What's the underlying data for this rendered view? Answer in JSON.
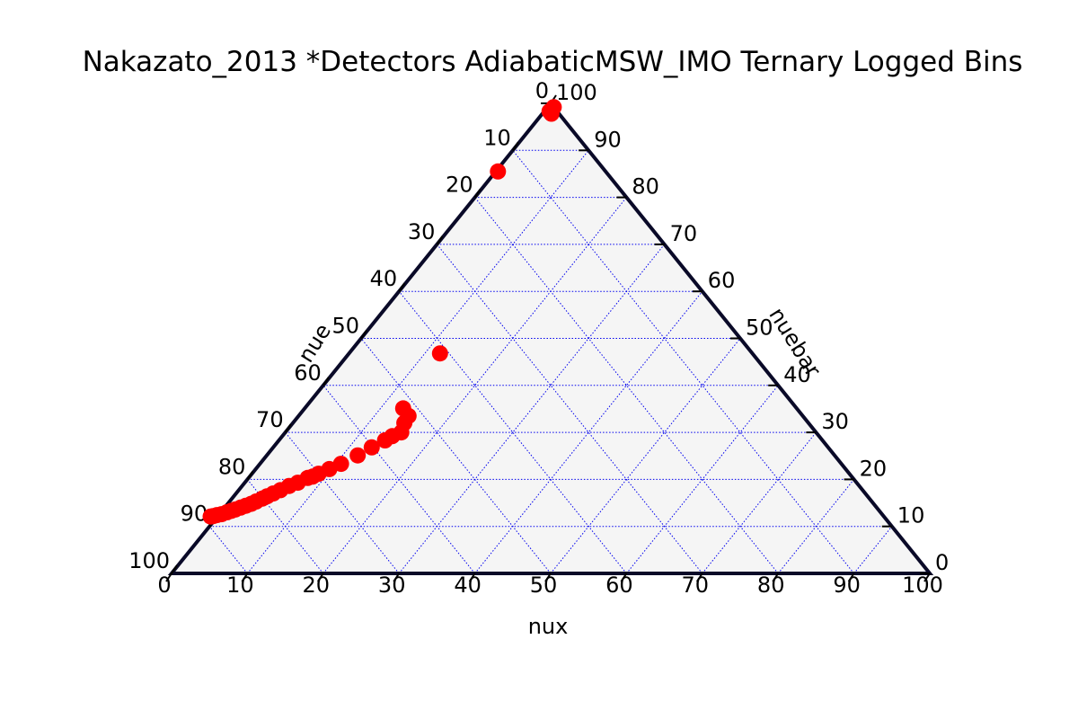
{
  "chart_data": {
    "type": "scatter",
    "subtype": "ternary",
    "title": "Nakazato_2013 *Detectors AdiabaticMSW_IMO Ternary Logged Bins",
    "axes": {
      "bottom": {
        "label": "nux",
        "ticks": [
          "0",
          "10",
          "20",
          "30",
          "40",
          "50",
          "60",
          "70",
          "80",
          "90",
          "100"
        ]
      },
      "left": {
        "label": "nue",
        "ticks": [
          "0",
          "10",
          "20",
          "30",
          "40",
          "50",
          "60",
          "70",
          "80",
          "90",
          "100"
        ]
      },
      "right": {
        "label": "nuebar",
        "ticks": [
          "0",
          "10",
          "20",
          "30",
          "40",
          "50",
          "60",
          "70",
          "80",
          "90",
          "100"
        ]
      }
    },
    "scale": 100,
    "grid": true,
    "grid_color": "#0000ee",
    "background_color": "#f5f5f5",
    "frame_color": "#0a0a28",
    "marker_color": "#ff0000",
    "points": [
      {
        "nux": 0.8,
        "nuebar": 99.2,
        "nue": 0.0
      },
      {
        "nux": 0.7,
        "nuebar": 98.3,
        "nue": 1.0
      },
      {
        "nux": 1.2,
        "nuebar": 97.8,
        "nue": 1.0
      },
      {
        "nux": 0.3,
        "nuebar": 85.5,
        "nue": 14.2
      },
      {
        "nux": 12.0,
        "nuebar": 46.8,
        "nue": 41.2
      },
      {
        "nux": 13.0,
        "nuebar": 35.1,
        "nue": 51.9
      },
      {
        "nux": 14.5,
        "nuebar": 33.5,
        "nue": 52.0
      },
      {
        "nux": 14.7,
        "nuebar": 32.0,
        "nue": 53.3
      },
      {
        "nux": 15.3,
        "nuebar": 30.0,
        "nue": 54.7
      },
      {
        "nux": 14.5,
        "nuebar": 29.2,
        "nue": 56.3
      },
      {
        "nux": 14.0,
        "nuebar": 28.3,
        "nue": 57.7
      },
      {
        "nux": 13.0,
        "nuebar": 26.8,
        "nue": 60.2
      },
      {
        "nux": 12.0,
        "nuebar": 25.1,
        "nue": 62.9
      },
      {
        "nux": 10.7,
        "nuebar": 23.3,
        "nue": 66.0
      },
      {
        "nux": 9.7,
        "nuebar": 22.2,
        "nue": 68.1
      },
      {
        "nux": 8.8,
        "nuebar": 21.2,
        "nue": 70.0
      },
      {
        "nux": 8.3,
        "nuebar": 20.6,
        "nue": 71.1
      },
      {
        "nux": 7.8,
        "nuebar": 20.3,
        "nue": 71.9
      },
      {
        "nux": 7.0,
        "nuebar": 19.3,
        "nue": 73.7
      },
      {
        "nux": 6.2,
        "nuebar": 18.6,
        "nue": 75.2
      },
      {
        "nux": 5.5,
        "nuebar": 17.7,
        "nue": 76.8
      },
      {
        "nux": 4.9,
        "nuebar": 17.0,
        "nue": 78.1
      },
      {
        "nux": 4.4,
        "nuebar": 16.4,
        "nue": 79.2
      },
      {
        "nux": 4.0,
        "nuebar": 15.9,
        "nue": 80.1
      },
      {
        "nux": 3.5,
        "nuebar": 15.3,
        "nue": 81.2
      },
      {
        "nux": 3.1,
        "nuebar": 14.8,
        "nue": 82.1
      },
      {
        "nux": 2.6,
        "nuebar": 14.4,
        "nue": 83.0
      },
      {
        "nux": 2.1,
        "nuebar": 14.0,
        "nue": 83.9
      },
      {
        "nux": 1.6,
        "nuebar": 13.6,
        "nue": 84.8
      },
      {
        "nux": 1.2,
        "nuebar": 13.3,
        "nue": 85.5
      },
      {
        "nux": 0.8,
        "nuebar": 13.0,
        "nue": 86.2
      },
      {
        "nux": 0.3,
        "nuebar": 12.6,
        "nue": 87.1
      },
      {
        "nux": -0.2,
        "nuebar": 12.4,
        "nue": 87.8
      },
      {
        "nux": -0.6,
        "nuebar": 12.2,
        "nue": 88.4
      },
      {
        "nux": -0.9,
        "nuebar": 12.1,
        "nue": 88.8
      }
    ]
  }
}
